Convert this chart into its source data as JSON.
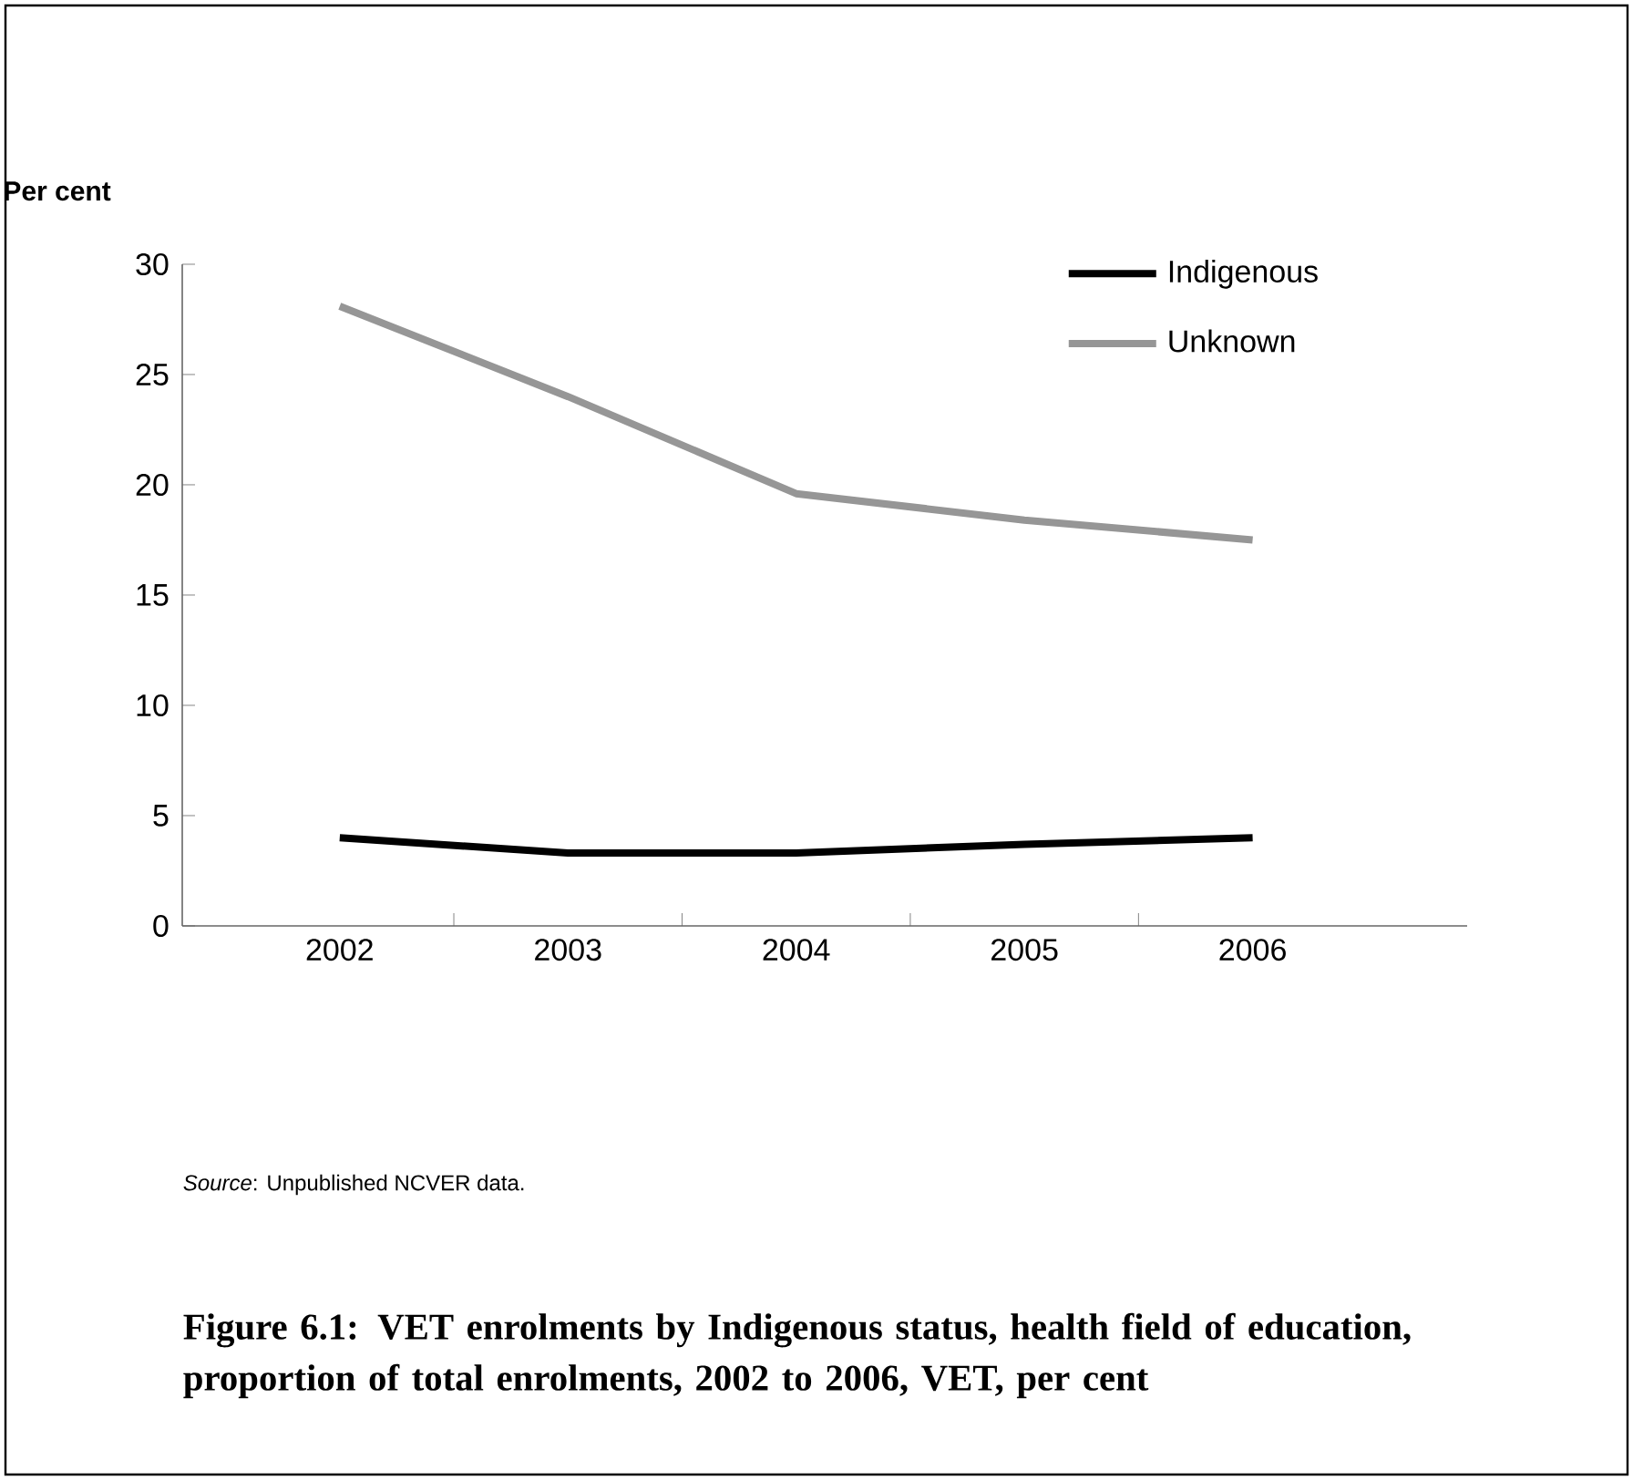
{
  "chart_data": {
    "type": "line",
    "title": "Figure 6.1: VET enrolments by Indigenous status, health field of education, proportion of total enrolments, 2002 to 2006, VET, per cent",
    "ylabel": "Per cent",
    "categories": [
      "2002",
      "2003",
      "2004",
      "2005",
      "2006"
    ],
    "series": [
      {
        "name": "Indigenous",
        "color": "#000000",
        "values": [
          4.0,
          3.3,
          3.3,
          3.7,
          4.0
        ]
      },
      {
        "name": "Unknown",
        "color": "#969696",
        "values": [
          28.1,
          24.0,
          19.6,
          18.4,
          17.5
        ]
      }
    ],
    "ylim": [
      0,
      30
    ],
    "yticks": [
      0,
      5,
      10,
      15,
      20,
      25,
      30
    ],
    "legend": "top right",
    "grid": false,
    "marker": "none",
    "line_style": "solid",
    "annotations": [
      "*Source*: Unpublished NCVER data."
    ]
  }
}
